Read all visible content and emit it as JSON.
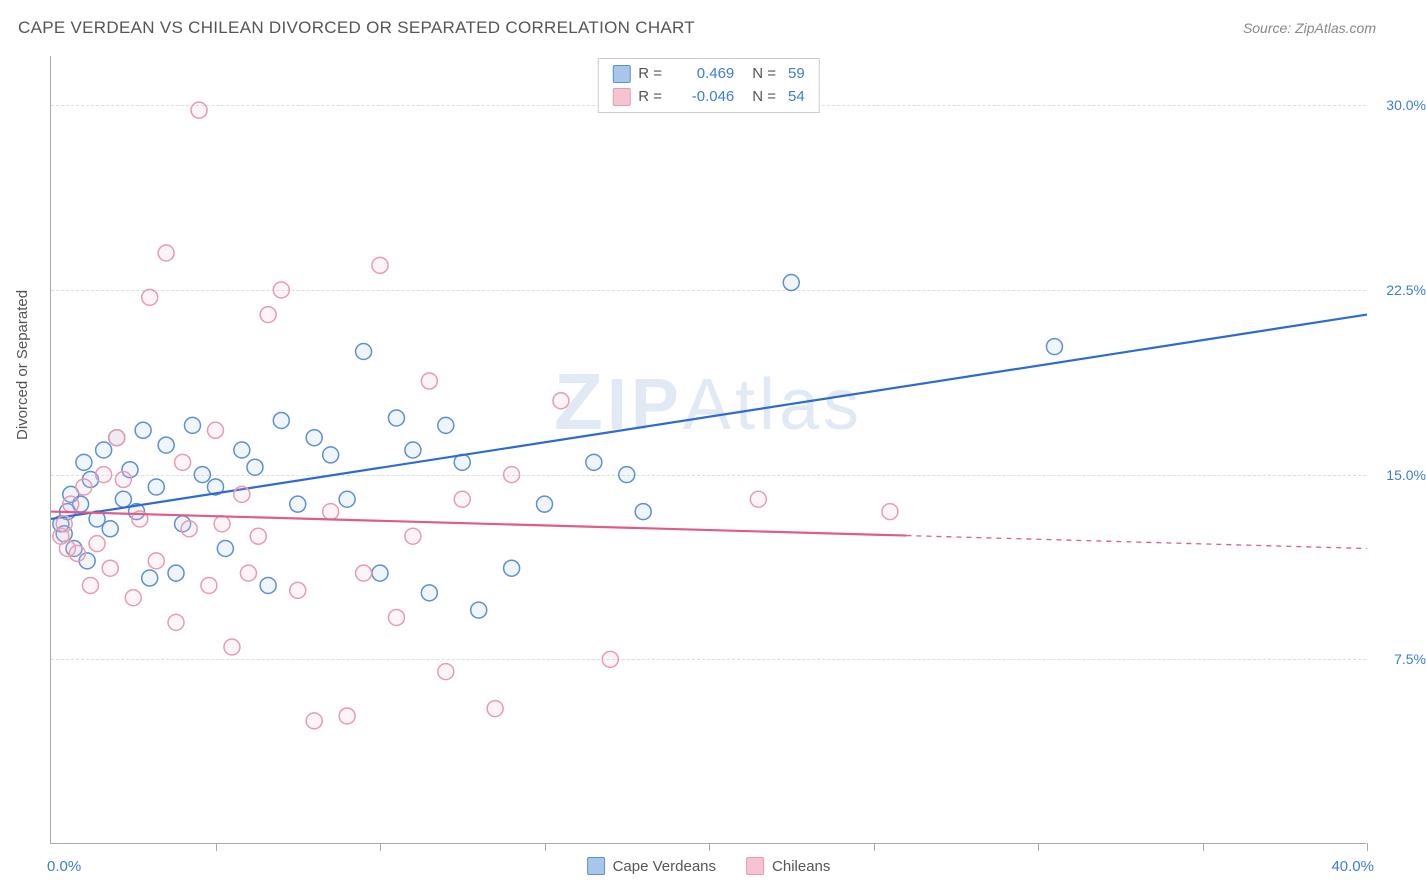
{
  "title": "CAPE VERDEAN VS CHILEAN DIVORCED OR SEPARATED CORRELATION CHART",
  "source": "Source: ZipAtlas.com",
  "ylabel": "Divorced or Separated",
  "watermark": "ZIPAtlas",
  "chart": {
    "type": "scatter",
    "background_color": "#ffffff",
    "grid_color": "#dddddd",
    "axis_color": "#aaaaaa",
    "xlim": [
      0,
      40
    ],
    "ylim": [
      0,
      32
    ],
    "xtick_positions": [
      5,
      10,
      15,
      20,
      25,
      30,
      35,
      40
    ],
    "ytick_positions": [
      7.5,
      15.0,
      22.5,
      30.0
    ],
    "ytick_labels": [
      "7.5%",
      "15.0%",
      "22.5%",
      "30.0%"
    ],
    "xlim_labels": [
      "0.0%",
      "40.0%"
    ],
    "marker_radius": 8,
    "marker_fill_opacity": 0.18,
    "marker_stroke_width": 1.5,
    "trend_line_width": 2.2,
    "label_fontsize": 15,
    "tick_fontsize": 14,
    "tick_color": "#3b7dd8"
  },
  "series": [
    {
      "name": "Cape Verdeans",
      "color_stroke": "#5b8fd6",
      "color_fill": "#a8c5ea",
      "trend_color": "#2e6bd1",
      "r": "0.469",
      "n": "59",
      "trend": {
        "x1": 0,
        "y1": 13.2,
        "x2": 40,
        "y2": 21.5,
        "solid_until": 40
      },
      "points": [
        [
          0.3,
          13.0
        ],
        [
          0.4,
          12.6
        ],
        [
          0.5,
          13.5
        ],
        [
          0.6,
          14.2
        ],
        [
          0.7,
          12.0
        ],
        [
          0.9,
          13.8
        ],
        [
          1.0,
          15.5
        ],
        [
          1.1,
          11.5
        ],
        [
          1.2,
          14.8
        ],
        [
          1.4,
          13.2
        ],
        [
          1.6,
          16.0
        ],
        [
          1.8,
          12.8
        ],
        [
          2.0,
          16.5
        ],
        [
          2.2,
          14.0
        ],
        [
          2.4,
          15.2
        ],
        [
          2.6,
          13.5
        ],
        [
          2.8,
          16.8
        ],
        [
          3.0,
          10.8
        ],
        [
          3.2,
          14.5
        ],
        [
          3.5,
          16.2
        ],
        [
          3.8,
          11.0
        ],
        [
          4.0,
          13.0
        ],
        [
          4.3,
          17.0
        ],
        [
          4.6,
          15.0
        ],
        [
          5.0,
          14.5
        ],
        [
          5.3,
          12.0
        ],
        [
          5.8,
          16.0
        ],
        [
          6.2,
          15.3
        ],
        [
          6.6,
          10.5
        ],
        [
          7.0,
          17.2
        ],
        [
          7.5,
          13.8
        ],
        [
          8.0,
          16.5
        ],
        [
          8.5,
          15.8
        ],
        [
          9.0,
          14.0
        ],
        [
          9.5,
          20.0
        ],
        [
          10.0,
          11.0
        ],
        [
          10.5,
          17.3
        ],
        [
          11.0,
          16.0
        ],
        [
          11.5,
          10.2
        ],
        [
          12.0,
          17.0
        ],
        [
          12.5,
          15.5
        ],
        [
          13.0,
          9.5
        ],
        [
          14.0,
          11.2
        ],
        [
          15.0,
          13.8
        ],
        [
          16.5,
          15.5
        ],
        [
          17.5,
          15.0
        ],
        [
          18.0,
          13.5
        ],
        [
          22.5,
          22.8
        ],
        [
          30.5,
          20.2
        ]
      ]
    },
    {
      "name": "Chileans",
      "color_stroke": "#e79bb0",
      "color_fill": "#f5c4d0",
      "trend_color": "#e15b88",
      "r": "-0.046",
      "n": "54",
      "trend": {
        "x1": 0,
        "y1": 13.5,
        "x2": 40,
        "y2": 12.0,
        "solid_until": 26
      },
      "points": [
        [
          0.3,
          12.5
        ],
        [
          0.4,
          13.0
        ],
        [
          0.5,
          12.0
        ],
        [
          0.6,
          13.8
        ],
        [
          0.8,
          11.8
        ],
        [
          1.0,
          14.5
        ],
        [
          1.2,
          10.5
        ],
        [
          1.4,
          12.2
        ],
        [
          1.6,
          15.0
        ],
        [
          1.8,
          11.2
        ],
        [
          2.0,
          16.5
        ],
        [
          2.2,
          14.8
        ],
        [
          2.5,
          10.0
        ],
        [
          2.7,
          13.2
        ],
        [
          3.0,
          22.2
        ],
        [
          3.2,
          11.5
        ],
        [
          3.5,
          24.0
        ],
        [
          3.8,
          9.0
        ],
        [
          4.0,
          15.5
        ],
        [
          4.2,
          12.8
        ],
        [
          4.5,
          29.8
        ],
        [
          4.8,
          10.5
        ],
        [
          5.0,
          16.8
        ],
        [
          5.2,
          13.0
        ],
        [
          5.5,
          8.0
        ],
        [
          5.8,
          14.2
        ],
        [
          6.0,
          11.0
        ],
        [
          6.3,
          12.5
        ],
        [
          6.6,
          21.5
        ],
        [
          7.0,
          22.5
        ],
        [
          7.5,
          10.3
        ],
        [
          8.0,
          5.0
        ],
        [
          8.5,
          13.5
        ],
        [
          9.0,
          5.2
        ],
        [
          9.5,
          11.0
        ],
        [
          10.0,
          23.5
        ],
        [
          10.5,
          9.2
        ],
        [
          11.0,
          12.5
        ],
        [
          11.5,
          18.8
        ],
        [
          12.0,
          7.0
        ],
        [
          12.5,
          14.0
        ],
        [
          13.5,
          5.5
        ],
        [
          14.0,
          15.0
        ],
        [
          15.5,
          18.0
        ],
        [
          17.0,
          7.5
        ],
        [
          21.5,
          14.0
        ],
        [
          25.5,
          13.5
        ]
      ]
    }
  ],
  "legend_bottom": [
    {
      "label": "Cape Verdeans",
      "fill": "#a8c5ea",
      "stroke": "#5b8fd6"
    },
    {
      "label": "Chileans",
      "fill": "#f5c4d0",
      "stroke": "#e79bb0"
    }
  ]
}
